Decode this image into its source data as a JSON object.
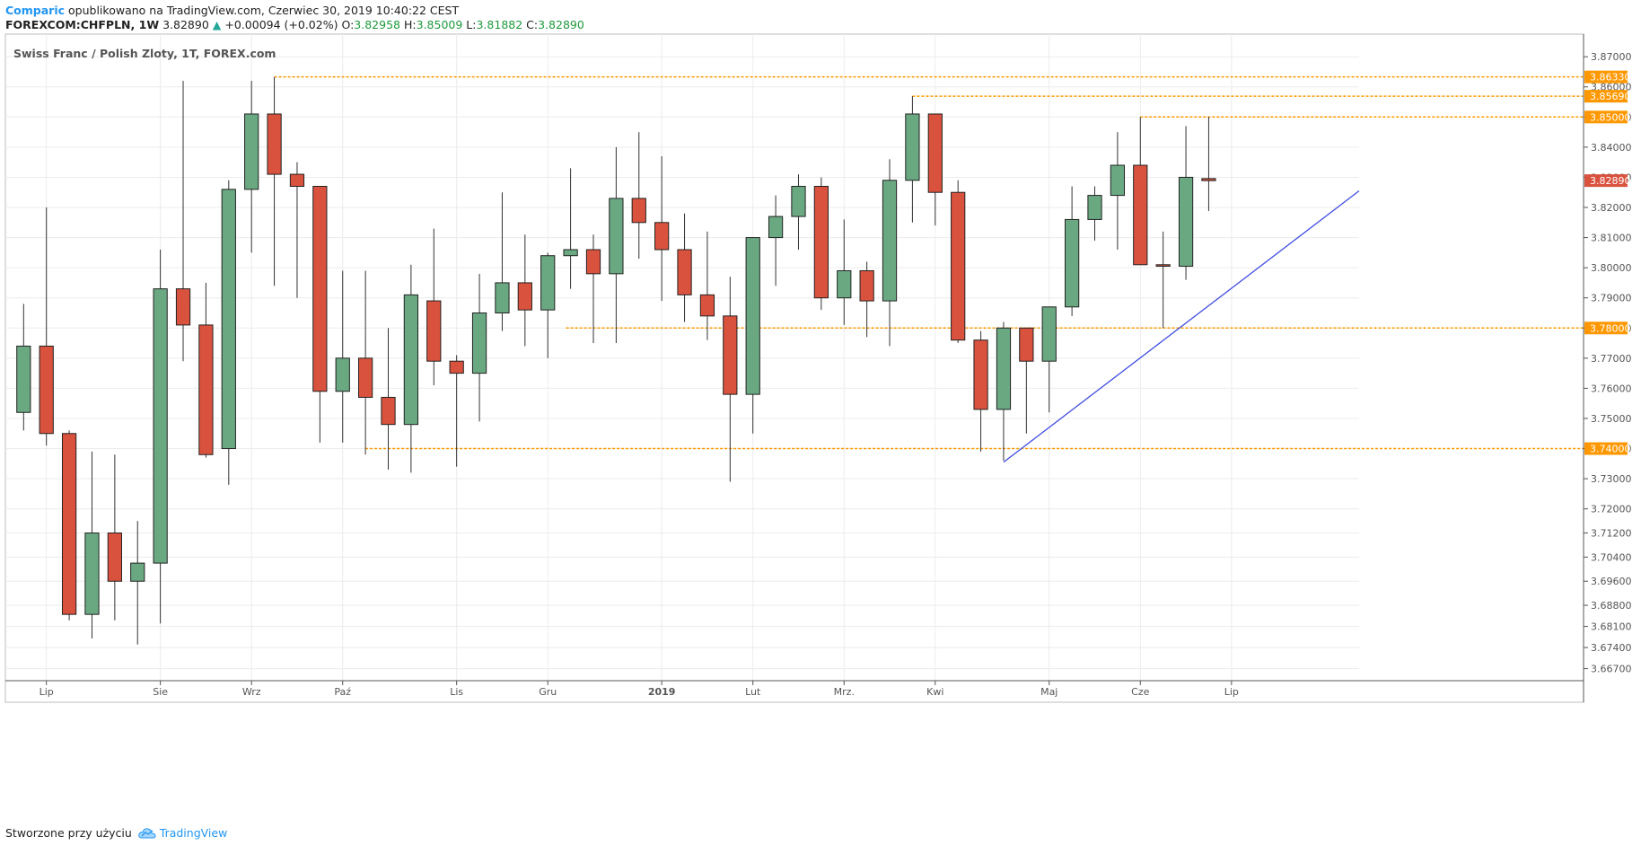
{
  "header": {
    "author": "Comparic",
    "published_text": "opublikowano na TradingView.com, Czerwiec 30, 2019 10:40:22 CEST",
    "symbol": "FOREXCOM:CHFPLN, 1W",
    "last": "3.82890",
    "change_arrow": "▲",
    "change": "+0.00094 (+0.02%)",
    "o_label": "O:",
    "o_val": "3.82958",
    "h_label": "H:",
    "h_val": "3.85009",
    "l_label": "L:",
    "l_val": "3.81882",
    "c_label": "C:",
    "c_val": "3.82890"
  },
  "footer": {
    "text": "Stworzone przy użyciu",
    "brand": "TradingView"
  },
  "colors": {
    "up": "#6aa882",
    "down": "#d9523e",
    "level": "#ff9800",
    "trend": "#3f4de0",
    "grid": "#ececec",
    "last_price": "#d9523e"
  },
  "chart_data": {
    "type": "candlestick",
    "title": "Swiss Franc / Polish Zloty, 1T, FOREX.com",
    "ylim": [
      3.663,
      3.8775
    ],
    "xlim": [
      -0.8,
      58.6
    ],
    "y_ticks": [
      "3.87000",
      "3.86000",
      "3.85000",
      "3.84000",
      "3.83000",
      "3.82000",
      "3.81000",
      "3.80000",
      "3.79000",
      "3.78000",
      "3.77000",
      "3.76000",
      "3.75000",
      "3.74000",
      "3.73000",
      "3.72000",
      "3.71200",
      "3.70400",
      "3.69600",
      "3.68800",
      "3.68100",
      "3.67400",
      "3.66700"
    ],
    "x_labels": [
      {
        "label": "Lip",
        "i": 1,
        "bold": false
      },
      {
        "label": "Sie",
        "i": 6,
        "bold": false
      },
      {
        "label": "Wrz",
        "i": 10,
        "bold": false
      },
      {
        "label": "Paź",
        "i": 14,
        "bold": false
      },
      {
        "label": "Lis",
        "i": 19,
        "bold": false
      },
      {
        "label": "Gru",
        "i": 23,
        "bold": false
      },
      {
        "label": "2019",
        "i": 28,
        "bold": true
      },
      {
        "label": "Lut",
        "i": 32,
        "bold": false
      },
      {
        "label": "Mrz.",
        "i": 36,
        "bold": false
      },
      {
        "label": "Kwi",
        "i": 40,
        "bold": false
      },
      {
        "label": "Maj",
        "i": 45,
        "bold": false
      },
      {
        "label": "Cze",
        "i": 49,
        "bold": false
      },
      {
        "label": "Lip",
        "i": 53,
        "bold": false
      }
    ],
    "candles": [
      {
        "o": 3.752,
        "h": 3.788,
        "l": 3.746,
        "c": 3.774
      },
      {
        "o": 3.774,
        "h": 3.82,
        "l": 3.741,
        "c": 3.745
      },
      {
        "o": 3.745,
        "h": 3.746,
        "l": 3.683,
        "c": 3.685
      },
      {
        "o": 3.685,
        "h": 3.739,
        "l": 3.677,
        "c": 3.712
      },
      {
        "o": 3.712,
        "h": 3.738,
        "l": 3.683,
        "c": 3.696
      },
      {
        "o": 3.696,
        "h": 3.716,
        "l": 3.675,
        "c": 3.702
      },
      {
        "o": 3.702,
        "h": 3.806,
        "l": 3.682,
        "c": 3.793
      },
      {
        "o": 3.793,
        "h": 3.862,
        "l": 3.769,
        "c": 3.781
      },
      {
        "o": 3.781,
        "h": 3.795,
        "l": 3.737,
        "c": 3.738
      },
      {
        "o": 3.74,
        "h": 3.829,
        "l": 3.728,
        "c": 3.826
      },
      {
        "o": 3.826,
        "h": 3.862,
        "l": 3.805,
        "c": 3.851
      },
      {
        "o": 3.851,
        "h": 3.8633,
        "l": 3.794,
        "c": 3.831
      },
      {
        "o": 3.831,
        "h": 3.835,
        "l": 3.79,
        "c": 3.827
      },
      {
        "o": 3.827,
        "h": 3.827,
        "l": 3.742,
        "c": 3.759
      },
      {
        "o": 3.759,
        "h": 3.799,
        "l": 3.742,
        "c": 3.77
      },
      {
        "o": 3.77,
        "h": 3.799,
        "l": 3.738,
        "c": 3.757
      },
      {
        "o": 3.757,
        "h": 3.78,
        "l": 3.733,
        "c": 3.748
      },
      {
        "o": 3.748,
        "h": 3.801,
        "l": 3.732,
        "c": 3.791
      },
      {
        "o": 3.789,
        "h": 3.813,
        "l": 3.761,
        "c": 3.769
      },
      {
        "o": 3.769,
        "h": 3.771,
        "l": 3.734,
        "c": 3.765
      },
      {
        "o": 3.765,
        "h": 3.798,
        "l": 3.749,
        "c": 3.785
      },
      {
        "o": 3.785,
        "h": 3.825,
        "l": 3.779,
        "c": 3.795
      },
      {
        "o": 3.795,
        "h": 3.811,
        "l": 3.774,
        "c": 3.786
      },
      {
        "o": 3.786,
        "h": 3.805,
        "l": 3.77,
        "c": 3.804
      },
      {
        "o": 3.804,
        "h": 3.833,
        "l": 3.793,
        "c": 3.806
      },
      {
        "o": 3.806,
        "h": 3.811,
        "l": 3.775,
        "c": 3.798
      },
      {
        "o": 3.798,
        "h": 3.84,
        "l": 3.775,
        "c": 3.823
      },
      {
        "o": 3.823,
        "h": 3.845,
        "l": 3.803,
        "c": 3.815
      },
      {
        "o": 3.815,
        "h": 3.837,
        "l": 3.789,
        "c": 3.806
      },
      {
        "o": 3.806,
        "h": 3.818,
        "l": 3.782,
        "c": 3.791
      },
      {
        "o": 3.791,
        "h": 3.812,
        "l": 3.776,
        "c": 3.784
      },
      {
        "o": 3.784,
        "h": 3.797,
        "l": 3.729,
        "c": 3.758
      },
      {
        "o": 3.758,
        "h": 3.81,
        "l": 3.745,
        "c": 3.81
      },
      {
        "o": 3.81,
        "h": 3.824,
        "l": 3.794,
        "c": 3.817
      },
      {
        "o": 3.817,
        "h": 3.831,
        "l": 3.806,
        "c": 3.827
      },
      {
        "o": 3.827,
        "h": 3.83,
        "l": 3.786,
        "c": 3.79
      },
      {
        "o": 3.79,
        "h": 3.816,
        "l": 3.781,
        "c": 3.799
      },
      {
        "o": 3.799,
        "h": 3.802,
        "l": 3.777,
        "c": 3.789
      },
      {
        "o": 3.789,
        "h": 3.836,
        "l": 3.774,
        "c": 3.829
      },
      {
        "o": 3.829,
        "h": 3.8569,
        "l": 3.815,
        "c": 3.851
      },
      {
        "o": 3.851,
        "h": 3.851,
        "l": 3.814,
        "c": 3.825
      },
      {
        "o": 3.825,
        "h": 3.829,
        "l": 3.775,
        "c": 3.776
      },
      {
        "o": 3.776,
        "h": 3.779,
        "l": 3.739,
        "c": 3.753
      },
      {
        "o": 3.753,
        "h": 3.782,
        "l": 3.736,
        "c": 3.78
      },
      {
        "o": 3.78,
        "h": 3.78,
        "l": 3.745,
        "c": 3.769
      },
      {
        "o": 3.769,
        "h": 3.787,
        "l": 3.752,
        "c": 3.787
      },
      {
        "o": 3.787,
        "h": 3.827,
        "l": 3.784,
        "c": 3.816
      },
      {
        "o": 3.816,
        "h": 3.827,
        "l": 3.809,
        "c": 3.824
      },
      {
        "o": 3.824,
        "h": 3.845,
        "l": 3.806,
        "c": 3.834
      },
      {
        "o": 3.834,
        "h": 3.85,
        "l": 3.801,
        "c": 3.801
      },
      {
        "o": 3.801,
        "h": 3.812,
        "l": 3.78,
        "c": 3.8005
      },
      {
        "o": 3.8005,
        "h": 3.847,
        "l": 3.796,
        "c": 3.83
      },
      {
        "o": 3.82958,
        "h": 3.85009,
        "l": 3.81882,
        "c": 3.8289
      }
    ],
    "levels": [
      {
        "value": 3.8633,
        "label": "3.86330",
        "from_i": 11
      },
      {
        "value": 3.8569,
        "label": "3.85690",
        "from_i": 39
      },
      {
        "value": 3.85,
        "label": "3.85000",
        "from_i": 49
      },
      {
        "value": 3.78,
        "label": "3.78000",
        "from_i": 23.8
      },
      {
        "value": 3.74,
        "label": "3.74000",
        "from_i": 15
      }
    ],
    "last_price": {
      "value": 3.8289,
      "label": "3.82890"
    },
    "trendline": {
      "from": {
        "i": 43,
        "v": 3.7355
      },
      "to": {
        "i": 58.6,
        "v": 3.8255
      }
    }
  }
}
